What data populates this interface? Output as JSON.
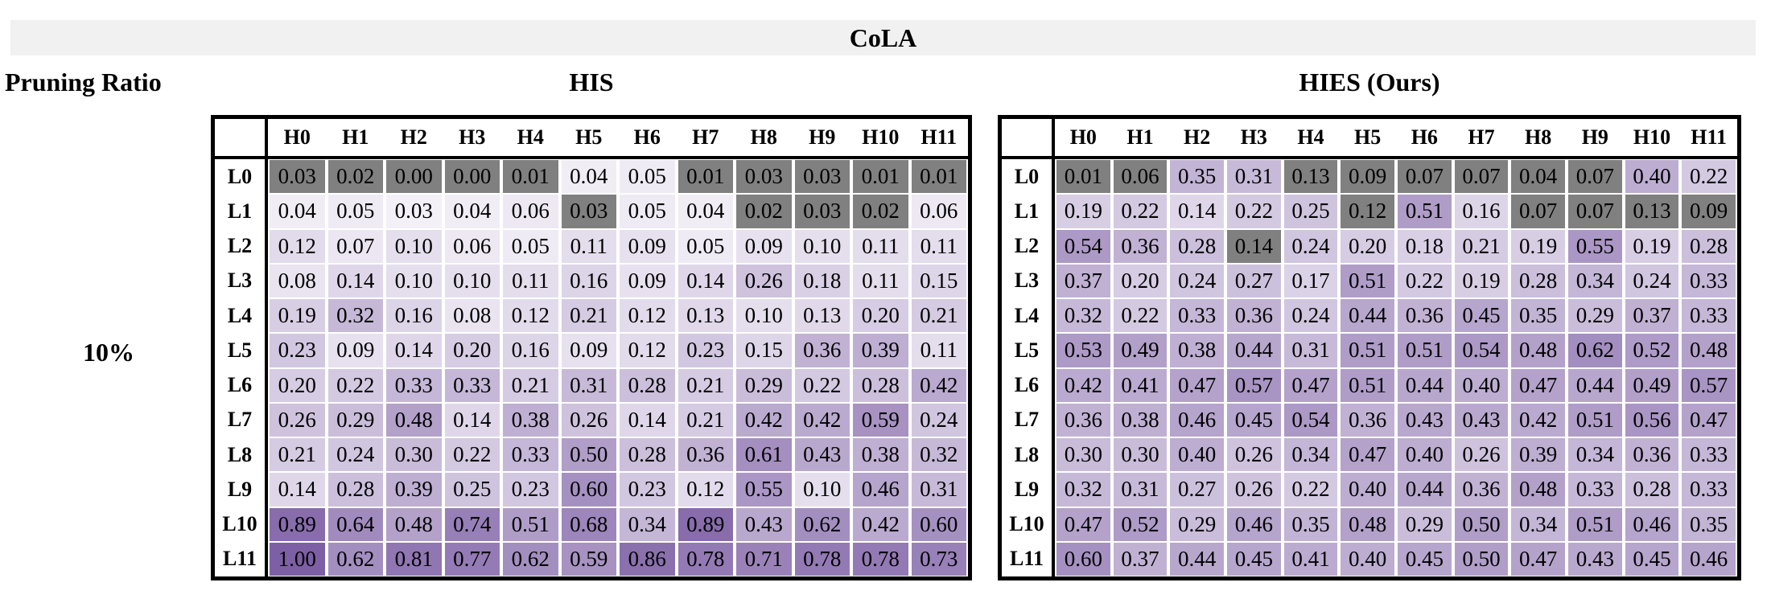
{
  "banner": {
    "title": "CoLA",
    "bg": "#F1F1F1"
  },
  "left_column": {
    "header": "Pruning Ratio",
    "ratio_label": "10%"
  },
  "colors": {
    "banner_bg": "#F1F1F1",
    "pruned_gray": "#808080",
    "scale_low": "#FCFBFD",
    "scale_high": "#7D5FA5",
    "grid_black": "#000000",
    "cell_gap_white": "#FFFFFF"
  },
  "chart_data": [
    {
      "type": "heatmap",
      "title": "HIS",
      "x_labels": [
        "H0",
        "H1",
        "H2",
        "H3",
        "H4",
        "H5",
        "H6",
        "H7",
        "H8",
        "H9",
        "H10",
        "H11"
      ],
      "y_labels": [
        "L0",
        "L1",
        "L2",
        "L3",
        "L4",
        "L5",
        "L6",
        "L7",
        "L8",
        "L9",
        "L10",
        "L11"
      ],
      "values": [
        [
          0.03,
          0.02,
          0.0,
          0.0,
          0.01,
          0.04,
          0.05,
          0.01,
          0.03,
          0.03,
          0.01,
          0.01
        ],
        [
          0.04,
          0.05,
          0.03,
          0.04,
          0.06,
          0.03,
          0.05,
          0.04,
          0.02,
          0.03,
          0.02,
          0.06
        ],
        [
          0.12,
          0.07,
          0.1,
          0.06,
          0.05,
          0.11,
          0.09,
          0.05,
          0.09,
          0.1,
          0.11,
          0.11
        ],
        [
          0.08,
          0.14,
          0.1,
          0.1,
          0.11,
          0.16,
          0.09,
          0.14,
          0.26,
          0.18,
          0.11,
          0.15
        ],
        [
          0.19,
          0.32,
          0.16,
          0.08,
          0.12,
          0.21,
          0.12,
          0.13,
          0.1,
          0.13,
          0.2,
          0.21
        ],
        [
          0.23,
          0.09,
          0.14,
          0.2,
          0.16,
          0.09,
          0.12,
          0.23,
          0.15,
          0.36,
          0.39,
          0.11
        ],
        [
          0.2,
          0.22,
          0.33,
          0.33,
          0.21,
          0.31,
          0.28,
          0.21,
          0.29,
          0.22,
          0.28,
          0.42
        ],
        [
          0.26,
          0.29,
          0.48,
          0.14,
          0.38,
          0.26,
          0.14,
          0.21,
          0.42,
          0.42,
          0.59,
          0.24
        ],
        [
          0.21,
          0.24,
          0.3,
          0.22,
          0.33,
          0.5,
          0.28,
          0.36,
          0.61,
          0.43,
          0.38,
          0.32
        ],
        [
          0.14,
          0.28,
          0.39,
          0.25,
          0.23,
          0.6,
          0.23,
          0.12,
          0.55,
          0.1,
          0.46,
          0.31
        ],
        [
          0.89,
          0.64,
          0.48,
          0.74,
          0.51,
          0.68,
          0.34,
          0.89,
          0.43,
          0.62,
          0.42,
          0.6
        ],
        [
          1.0,
          0.62,
          0.81,
          0.77,
          0.62,
          0.59,
          0.86,
          0.78,
          0.71,
          0.78,
          0.78,
          0.73
        ]
      ],
      "pruned_cells": [
        [
          0,
          0
        ],
        [
          0,
          1
        ],
        [
          0,
          2
        ],
        [
          0,
          3
        ],
        [
          0,
          4
        ],
        [
          0,
          7
        ],
        [
          0,
          8
        ],
        [
          0,
          9
        ],
        [
          0,
          10
        ],
        [
          0,
          11
        ],
        [
          1,
          5
        ],
        [
          1,
          8
        ],
        [
          1,
          9
        ],
        [
          1,
          10
        ]
      ],
      "value_range": [
        0,
        1
      ]
    },
    {
      "type": "heatmap",
      "title": "HIES (Ours)",
      "x_labels": [
        "H0",
        "H1",
        "H2",
        "H3",
        "H4",
        "H5",
        "H6",
        "H7",
        "H8",
        "H9",
        "H10",
        "H11"
      ],
      "y_labels": [
        "L0",
        "L1",
        "L2",
        "L3",
        "L4",
        "L5",
        "L6",
        "L7",
        "L8",
        "L9",
        "L10",
        "L11"
      ],
      "values": [
        [
          0.01,
          0.06,
          0.35,
          0.31,
          0.13,
          0.09,
          0.07,
          0.07,
          0.04,
          0.07,
          0.4,
          0.22
        ],
        [
          0.19,
          0.22,
          0.14,
          0.22,
          0.25,
          0.12,
          0.51,
          0.16,
          0.07,
          0.07,
          0.13,
          0.09
        ],
        [
          0.54,
          0.36,
          0.28,
          0.14,
          0.24,
          0.2,
          0.18,
          0.21,
          0.19,
          0.55,
          0.19,
          0.28
        ],
        [
          0.37,
          0.2,
          0.24,
          0.27,
          0.17,
          0.51,
          0.22,
          0.19,
          0.28,
          0.34,
          0.24,
          0.33
        ],
        [
          0.32,
          0.22,
          0.33,
          0.36,
          0.24,
          0.44,
          0.36,
          0.45,
          0.35,
          0.29,
          0.37,
          0.33
        ],
        [
          0.53,
          0.49,
          0.38,
          0.44,
          0.31,
          0.51,
          0.51,
          0.54,
          0.48,
          0.62,
          0.52,
          0.48
        ],
        [
          0.42,
          0.41,
          0.47,
          0.57,
          0.47,
          0.51,
          0.44,
          0.4,
          0.47,
          0.44,
          0.49,
          0.57
        ],
        [
          0.36,
          0.38,
          0.46,
          0.45,
          0.54,
          0.36,
          0.43,
          0.43,
          0.42,
          0.51,
          0.56,
          0.47
        ],
        [
          0.3,
          0.3,
          0.4,
          0.26,
          0.34,
          0.47,
          0.4,
          0.26,
          0.39,
          0.34,
          0.36,
          0.33
        ],
        [
          0.32,
          0.31,
          0.27,
          0.26,
          0.22,
          0.4,
          0.44,
          0.36,
          0.48,
          0.33,
          0.28,
          0.33
        ],
        [
          0.47,
          0.52,
          0.29,
          0.46,
          0.35,
          0.48,
          0.29,
          0.5,
          0.34,
          0.51,
          0.46,
          0.35
        ],
        [
          0.6,
          0.37,
          0.44,
          0.45,
          0.41,
          0.4,
          0.45,
          0.5,
          0.47,
          0.43,
          0.45,
          0.46
        ]
      ],
      "pruned_cells": [
        [
          0,
          0
        ],
        [
          0,
          1
        ],
        [
          0,
          4
        ],
        [
          0,
          5
        ],
        [
          0,
          6
        ],
        [
          0,
          7
        ],
        [
          0,
          8
        ],
        [
          0,
          9
        ],
        [
          1,
          5
        ],
        [
          1,
          8
        ],
        [
          1,
          9
        ],
        [
          1,
          10
        ],
        [
          1,
          11
        ],
        [
          2,
          3
        ]
      ],
      "value_range": [
        0,
        1
      ]
    }
  ],
  "layout_note": "Two 12x12 attention-head importance heatmaps (rows L0-L11 layers, columns H0-H11 heads); gray cells mark pruned heads at 10% pruning ratio."
}
